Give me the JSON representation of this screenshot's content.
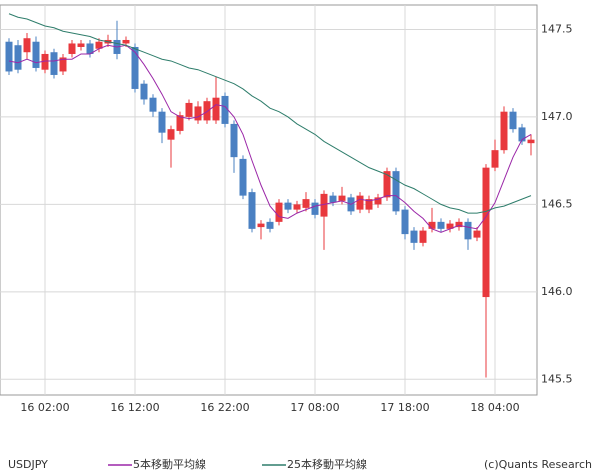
{
  "chart_data": {
    "type": "candlestick",
    "symbol": "USDJPY",
    "credit": "(c)Quants Research",
    "categories": [
      null,
      null,
      null,
      null,
      "16 02:00",
      null,
      null,
      null,
      null,
      null,
      null,
      null,
      null,
      null,
      "16 12:00",
      null,
      null,
      null,
      null,
      null,
      null,
      null,
      null,
      null,
      "16 22:00",
      null,
      null,
      null,
      null,
      null,
      null,
      null,
      null,
      null,
      "17 08:00",
      null,
      null,
      null,
      null,
      null,
      null,
      null,
      null,
      null,
      "17 18:00",
      null,
      null,
      null,
      null,
      null,
      null,
      null,
      null,
      null,
      "18 04:00",
      null,
      null,
      null,
      null
    ],
    "open": [
      147.43,
      147.41,
      147.37,
      147.43,
      147.27,
      147.37,
      147.26,
      147.36,
      147.4,
      147.42,
      147.39,
      147.42,
      147.44,
      147.42,
      147.4,
      147.19,
      147.11,
      147.03,
      146.87,
      146.92,
      147.0,
      146.98,
      146.98,
      146.98,
      147.12,
      146.96,
      146.76,
      146.57,
      146.37,
      146.4,
      146.4,
      146.51,
      146.47,
      146.48,
      146.51,
      146.43,
      146.55,
      146.52,
      146.54,
      146.47,
      146.47,
      146.5,
      146.54,
      146.69,
      146.47,
      146.35,
      146.28,
      146.36,
      146.4,
      146.36,
      146.37,
      146.4,
      146.31,
      145.97,
      146.71,
      146.81,
      147.03,
      146.94,
      146.85
    ],
    "high": [
      147.45,
      147.44,
      147.48,
      147.46,
      147.38,
      147.39,
      147.36,
      147.44,
      147.44,
      147.44,
      147.45,
      147.47,
      147.55,
      147.46,
      147.42,
      147.21,
      147.13,
      147.05,
      146.95,
      147.03,
      147.1,
      147.09,
      147.11,
      147.23,
      147.14,
      146.98,
      146.78,
      146.59,
      146.41,
      146.42,
      146.53,
      146.53,
      146.52,
      146.57,
      146.53,
      146.58,
      146.57,
      146.6,
      146.56,
      146.57,
      146.55,
      146.56,
      146.71,
      146.71,
      146.49,
      146.37,
      146.37,
      146.48,
      146.42,
      146.41,
      146.42,
      146.42,
      146.37,
      146.73,
      146.87,
      147.06,
      147.05,
      146.96,
      146.9
    ],
    "low": [
      147.24,
      147.25,
      147.33,
      147.26,
      147.25,
      147.22,
      147.24,
      147.34,
      147.38,
      147.34,
      147.37,
      147.4,
      147.33,
      147.4,
      147.14,
      147.07,
      147.0,
      146.85,
      146.71,
      146.9,
      146.98,
      146.96,
      146.96,
      146.96,
      146.94,
      146.68,
      146.53,
      146.34,
      146.3,
      146.34,
      146.38,
      146.45,
      146.45,
      146.46,
      146.42,
      146.24,
      146.49,
      146.5,
      146.44,
      146.45,
      146.45,
      146.48,
      146.52,
      146.44,
      146.3,
      146.24,
      146.26,
      146.34,
      146.34,
      146.34,
      146.35,
      146.24,
      146.29,
      145.51,
      146.69,
      146.79,
      146.91,
      146.84,
      146.78
    ],
    "close": [
      147.26,
      147.27,
      147.45,
      147.28,
      147.36,
      147.24,
      147.34,
      147.42,
      147.42,
      147.36,
      147.43,
      147.44,
      147.36,
      147.44,
      147.16,
      147.1,
      147.03,
      146.91,
      146.93,
      147.01,
      147.08,
      147.06,
      147.09,
      147.11,
      146.96,
      146.77,
      146.55,
      146.36,
      146.39,
      146.36,
      146.51,
      146.47,
      146.5,
      146.53,
      146.44,
      146.56,
      146.51,
      146.55,
      146.46,
      146.55,
      146.53,
      146.54,
      146.69,
      146.46,
      146.33,
      146.28,
      146.35,
      146.4,
      146.36,
      146.39,
      146.4,
      146.3,
      146.35,
      146.71,
      146.81,
      147.03,
      146.93,
      146.86,
      146.87
    ],
    "up_color": "#e8383d",
    "down_color": "#4a80c2",
    "lines": [
      {
        "name": "5本移動平均線",
        "color": "#9b27a8",
        "values": [
          147.32,
          147.31,
          147.33,
          147.31,
          147.32,
          147.32,
          147.33,
          147.33,
          147.36,
          147.36,
          147.39,
          147.41,
          147.4,
          147.41,
          147.37,
          147.3,
          147.22,
          147.13,
          147.03,
          147.0,
          146.99,
          147.0,
          147.03,
          147.07,
          147.06,
          147.0,
          146.9,
          146.75,
          146.61,
          146.49,
          146.43,
          146.42,
          146.45,
          146.47,
          146.49,
          146.5,
          146.51,
          146.52,
          146.5,
          146.53,
          146.52,
          146.53,
          146.55,
          146.55,
          146.51,
          146.46,
          146.42,
          146.36,
          146.34,
          146.36,
          146.38,
          146.37,
          146.36,
          146.43,
          146.51,
          146.64,
          146.77,
          146.87,
          146.9
        ]
      },
      {
        "name": "25本移動平均線",
        "color": "#2e7d6b",
        "values": [
          147.59,
          147.57,
          147.56,
          147.54,
          147.52,
          147.51,
          147.49,
          147.48,
          147.47,
          147.46,
          147.44,
          147.43,
          147.42,
          147.41,
          147.39,
          147.37,
          147.35,
          147.33,
          147.32,
          147.3,
          147.28,
          147.27,
          147.25,
          147.23,
          147.21,
          147.19,
          147.16,
          147.12,
          147.09,
          147.05,
          147.03,
          147.0,
          146.96,
          146.93,
          146.9,
          146.86,
          146.83,
          146.8,
          146.77,
          146.74,
          146.71,
          146.69,
          146.67,
          146.64,
          146.61,
          146.59,
          146.56,
          146.53,
          146.5,
          146.48,
          146.47,
          146.45,
          146.45,
          146.46,
          146.48,
          146.49,
          146.51,
          146.53,
          146.55
        ]
      }
    ],
    "ylim": [
      145.41,
      147.64
    ],
    "yticks": [
      {
        "value": 145.5,
        "label": "145.5"
      },
      {
        "value": 146,
        "label": "146.0"
      },
      {
        "value": 146.5,
        "label": "146.5"
      },
      {
        "value": 147,
        "label": "147.0"
      },
      {
        "value": 147.5,
        "label": "147.5"
      }
    ],
    "grid": true
  }
}
